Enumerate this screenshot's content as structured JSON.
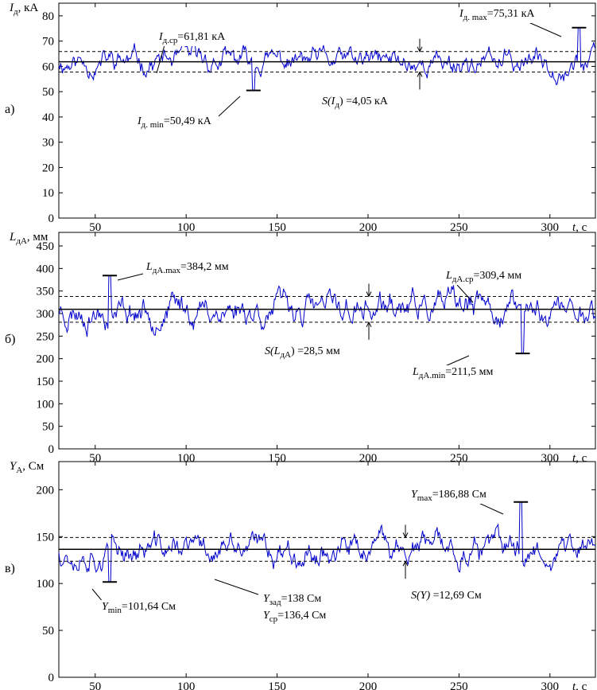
{
  "chart_data": [
    {
      "type": "line",
      "panel_label": "а)",
      "ylabel_sym": "I",
      "ylabel_sub": "д",
      "ylabel_unit": ", кА",
      "xlabel_sym": "t",
      "xlabel_unit": ", с",
      "xlim": [
        30,
        325
      ],
      "ylim": [
        0,
        85
      ],
      "xticks": [
        50,
        100,
        150,
        200,
        250,
        300
      ],
      "yticks": [
        0,
        10,
        20,
        30,
        40,
        50,
        60,
        70,
        80
      ],
      "mean": 61.81,
      "std": 4.05,
      "min": {
        "x": 137,
        "y": 50.49
      },
      "max": {
        "x": 316,
        "y": 75.31
      },
      "seed": 11,
      "series": [
        {
          "color": "#0000cc",
          "base": 61.81,
          "amp": 4.05
        }
      ],
      "annotations": [
        {
          "sym": "I",
          "sub": "д.ср",
          "text": "=61,81 кА",
          "ann_type": "mean"
        },
        {
          "sym": "I",
          "sub": "д. max",
          "text": "=75,31 кА",
          "ann_type": "max"
        },
        {
          "sym": "I",
          "sub": "д. min",
          "text": "=50,49 кА",
          "ann_type": "min"
        },
        {
          "sym": "S(I",
          "sub": "д",
          "text": ")  =4,05 кА",
          "ann_type": "std"
        }
      ]
    },
    {
      "type": "line",
      "panel_label": "б)",
      "ylabel_sym": "L",
      "ylabel_sub": "дА",
      "ylabel_unit": ", мм",
      "xlabel_sym": "t",
      "xlabel_unit": ", с",
      "xlim": [
        30,
        325
      ],
      "ylim": [
        0,
        480
      ],
      "xticks": [
        50,
        100,
        150,
        200,
        250,
        300
      ],
      "yticks": [
        0,
        50,
        100,
        150,
        200,
        250,
        300,
        350,
        400,
        450
      ],
      "mean": 309.4,
      "std": 28.5,
      "min": {
        "x": 285,
        "y": 211.5
      },
      "max": {
        "x": 58,
        "y": 384.2
      },
      "seed": 23,
      "series": [
        {
          "color": "#0000cc",
          "base": 309.4,
          "amp": 28.5
        }
      ],
      "annotations": [
        {
          "sym": "L",
          "sub": "дА.max",
          "text": "=384,2 мм",
          "ann_type": "max"
        },
        {
          "sym": "L",
          "sub": "дА.ср",
          "text": "=309,4 мм",
          "ann_type": "mean"
        },
        {
          "sym": "S(L",
          "sub": "дА",
          "text": ") =28,5 мм",
          "ann_type": "std"
        },
        {
          "sym": "L",
          "sub": "дА.min",
          "text": "=211,5 мм",
          "ann_type": "min"
        }
      ]
    },
    {
      "type": "line",
      "panel_label": "в)",
      "ylabel_sym": "Y",
      "ylabel_sub": "А",
      "ylabel_unit": ", См",
      "xlabel_sym": "t",
      "xlabel_unit": ", с",
      "xlim": [
        30,
        325
      ],
      "ylim": [
        0,
        230
      ],
      "xticks": [
        50,
        100,
        150,
        200,
        250,
        300
      ],
      "yticks": [
        0,
        50,
        100,
        150,
        200
      ],
      "mean": 136.4,
      "target": 138,
      "std": 12.69,
      "min": {
        "x": 58,
        "y": 101.64
      },
      "max": {
        "x": 284,
        "y": 186.88
      },
      "seed": 37,
      "series": [
        {
          "color": "#0000cc",
          "base": 136.4,
          "amp": 12.69
        }
      ],
      "annotations": [
        {
          "sym": "Y",
          "sub": "max",
          "text": "=186,88 См",
          "ann_type": "max"
        },
        {
          "sym": "Y",
          "sub": "min",
          "text": "=101,64 См",
          "ann_type": "min"
        },
        {
          "sym": "Y",
          "sub": "зад",
          "text": "=138 См",
          "ann_type": "target"
        },
        {
          "sym": "Y",
          "sub": "ср",
          "text": "=136,4 См",
          "ann_type": "mean"
        },
        {
          "sym": "S(Y)",
          "sub": "",
          "text": " =12,69 См",
          "ann_type": "std"
        }
      ]
    }
  ]
}
